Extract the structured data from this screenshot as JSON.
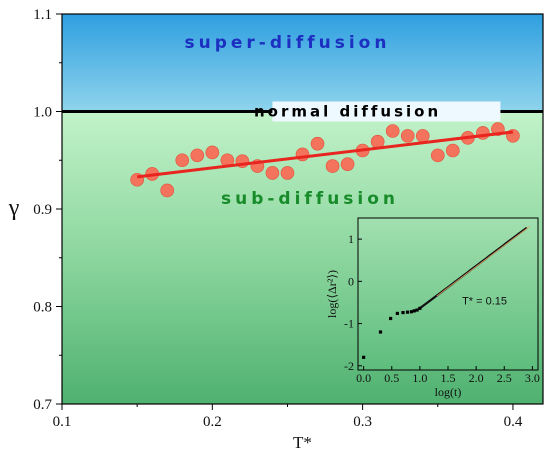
{
  "chart_data": {
    "type": "scatter",
    "xlabel": "T*",
    "ylabel": "γ",
    "xlim": [
      0.1,
      0.42
    ],
    "ylim": [
      0.7,
      1.1
    ],
    "x_ticks": [
      "0.1",
      "0.2",
      "0.3",
      "0.4"
    ],
    "y_ticks": [
      "0.7",
      "0.8",
      "0.9",
      "1.0",
      "1.1"
    ],
    "region_labels": {
      "super": "super-diffusion",
      "normal": "normal diffusion",
      "sub": "sub-diffusion"
    },
    "reference_line": 1.0,
    "fit_line": {
      "x": [
        0.15,
        0.4
      ],
      "y": [
        0.933,
        0.979
      ]
    },
    "series": [
      {
        "values": [
          [
            0.15,
            0.93
          ],
          [
            0.16,
            0.936
          ],
          [
            0.17,
            0.919
          ],
          [
            0.18,
            0.95
          ],
          [
            0.19,
            0.955
          ],
          [
            0.2,
            0.958
          ],
          [
            0.21,
            0.95
          ],
          [
            0.22,
            0.949
          ],
          [
            0.23,
            0.944
          ],
          [
            0.24,
            0.937
          ],
          [
            0.25,
            0.937
          ],
          [
            0.26,
            0.956
          ],
          [
            0.27,
            0.967
          ],
          [
            0.28,
            0.944
          ],
          [
            0.29,
            0.946
          ],
          [
            0.3,
            0.96
          ],
          [
            0.31,
            0.969
          ],
          [
            0.32,
            0.98
          ],
          [
            0.33,
            0.975
          ],
          [
            0.34,
            0.975
          ],
          [
            0.35,
            0.955
          ],
          [
            0.36,
            0.96
          ],
          [
            0.37,
            0.973
          ],
          [
            0.38,
            0.978
          ],
          [
            0.39,
            0.982
          ],
          [
            0.4,
            0.975
          ]
        ]
      }
    ],
    "colors": {
      "points": "#f4735c",
      "fit": "#e8251f",
      "normal_line": "#000000",
      "super_label": "#1c2fc0",
      "sub_label": "#188c2a"
    },
    "inset": {
      "xlabel": "log(t)",
      "ylabel": "log(⟨Δr²⟩)",
      "annotation": "T* = 0.15",
      "xlim": [
        -0.1,
        3.1
      ],
      "ylim": [
        -2.1,
        1.5
      ],
      "x_ticks": [
        "0.0",
        "0.5",
        "1.0",
        "1.5",
        "2.0",
        "2.5",
        "3.0"
      ],
      "y_ticks": [
        "-2",
        "-1",
        "0",
        "1"
      ],
      "points": [
        [
          0.0,
          -1.8
        ],
        [
          0.3,
          -1.2
        ],
        [
          0.48,
          -0.88
        ],
        [
          0.6,
          -0.76
        ],
        [
          0.7,
          -0.74
        ],
        [
          0.78,
          -0.73
        ],
        [
          0.85,
          -0.72
        ],
        [
          0.9,
          -0.7
        ],
        [
          0.95,
          -0.68
        ],
        [
          1.0,
          -0.64
        ]
      ],
      "curve": {
        "x": [
          1.0,
          2.9
        ],
        "y": [
          -0.64,
          1.27
        ]
      }
    }
  }
}
